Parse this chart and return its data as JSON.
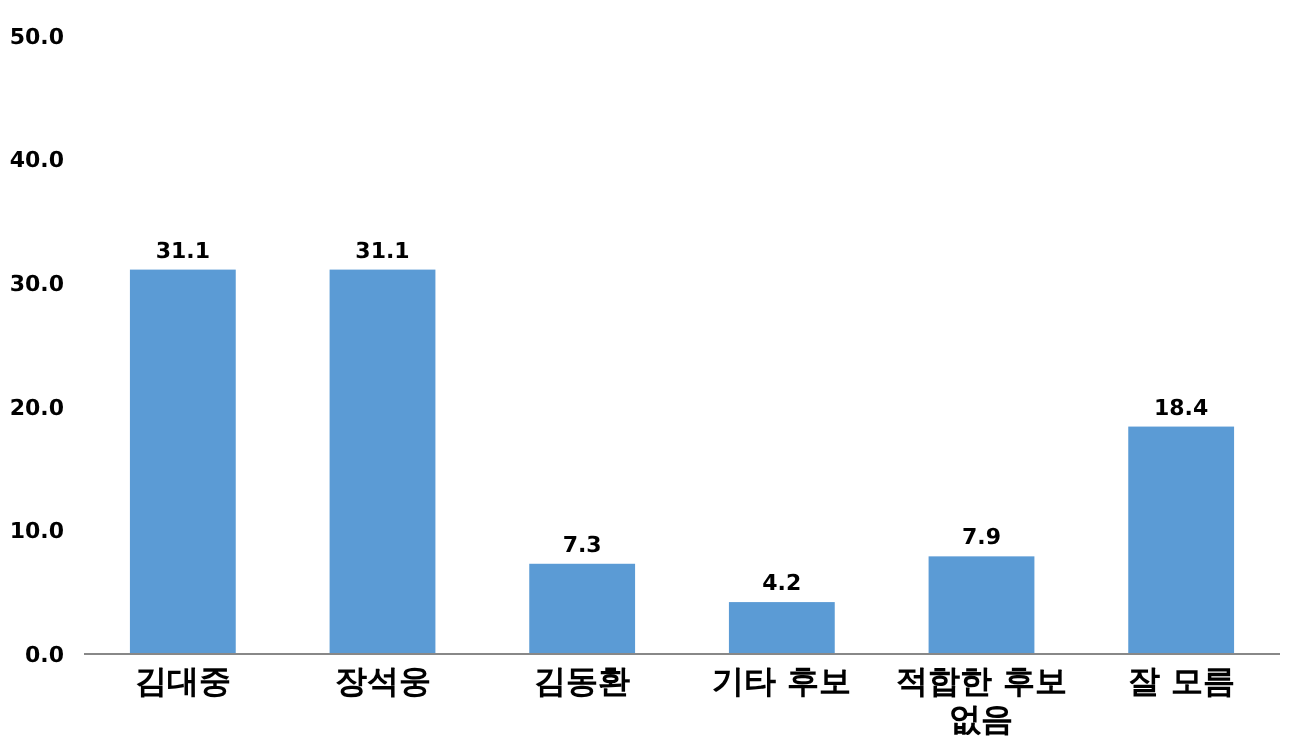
{
  "chart_data": {
    "type": "bar",
    "categories": [
      "김대중",
      "장석웅",
      "김동환",
      "기타 후보",
      "적합한 후보 없음",
      "잘 모름"
    ],
    "values": [
      31.1,
      31.1,
      7.3,
      4.2,
      7.9,
      18.4
    ],
    "color": "#5b9bd5",
    "data_labels": true,
    "grid": false,
    "ylim": [
      0,
      50
    ],
    "yticks": [
      {
        "value": 0,
        "label": "0.0"
      },
      {
        "value": 10,
        "label": "10.0"
      },
      {
        "value": 20,
        "label": "20.0"
      },
      {
        "value": 30,
        "label": "30.0"
      },
      {
        "value": 40,
        "label": "40.0"
      },
      {
        "value": 50,
        "label": "50.0"
      }
    ]
  }
}
